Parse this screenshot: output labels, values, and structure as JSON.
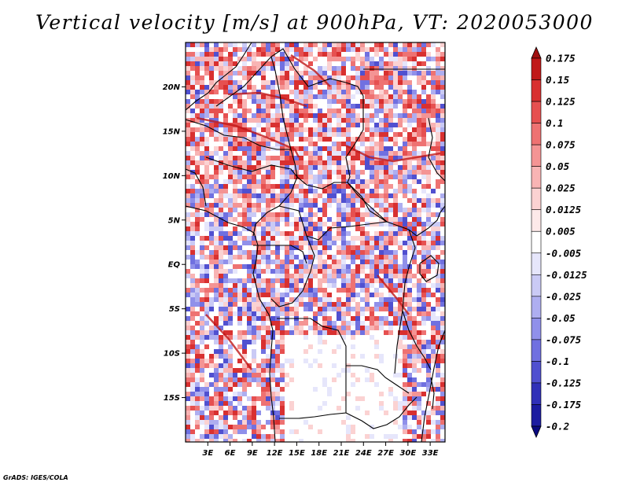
{
  "title": "Vertical velocity [m/s] at 900hPa, VT: 2020053000",
  "credit": "GrADS: IGES/COLA",
  "map": {
    "lon_range": [
      0,
      35
    ],
    "lat_range": [
      -20,
      25
    ],
    "lat_ticks": [
      {
        "value": 20,
        "label": "20N"
      },
      {
        "value": 15,
        "label": "15N"
      },
      {
        "value": 10,
        "label": "10N"
      },
      {
        "value": 5,
        "label": "5N"
      },
      {
        "value": 0,
        "label": "EQ"
      },
      {
        "value": -5,
        "label": "5S"
      },
      {
        "value": -10,
        "label": "10S"
      },
      {
        "value": -15,
        "label": "15S"
      }
    ],
    "lon_ticks": [
      {
        "value": 3,
        "label": "3E"
      },
      {
        "value": 6,
        "label": "6E"
      },
      {
        "value": 9,
        "label": "9E"
      },
      {
        "value": 12,
        "label": "12E"
      },
      {
        "value": 15,
        "label": "15E"
      },
      {
        "value": 18,
        "label": "18E"
      },
      {
        "value": 21,
        "label": "21E"
      },
      {
        "value": 24,
        "label": "24E"
      },
      {
        "value": 27,
        "label": "27E"
      },
      {
        "value": 30,
        "label": "30E"
      },
      {
        "value": 33,
        "label": "33E"
      }
    ]
  },
  "colorbar": {
    "labels": [
      "0.175",
      "0.15",
      "0.125",
      "0.1",
      "0.075",
      "0.05",
      "0.025",
      "0.0125",
      "0.005",
      "-0.005",
      "-0.0125",
      "-0.025",
      "-0.05",
      "-0.075",
      "-0.1",
      "-0.125",
      "-0.175",
      "-0.2"
    ],
    "colors": [
      "#a01010",
      "#c01818",
      "#d83030",
      "#e65050",
      "#ee7272",
      "#f49494",
      "#f8b4b4",
      "#fbd2d2",
      "#fde9e9",
      "#ffffff",
      "#e6e6fb",
      "#cacaf5",
      "#aeaef0",
      "#9090ea",
      "#7070e0",
      "#5050d0",
      "#3030b8",
      "#1c1ca0",
      "#0a0a80"
    ]
  }
}
